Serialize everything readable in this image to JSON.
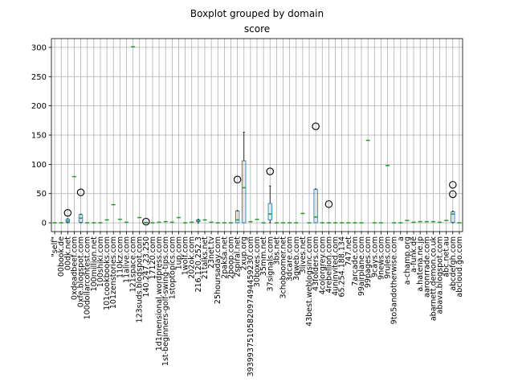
{
  "chart_data": {
    "type": "boxplot",
    "suptitle": "Boxplot grouped by domain",
    "title": "score",
    "xlabel": "",
    "ylabel": "",
    "ylim": [
      -15,
      315
    ],
    "yticks": [
      0,
      50,
      100,
      150,
      200,
      250,
      300
    ],
    "grid": true,
    "legend": "none",
    "colors": {
      "box": "#1f77b4",
      "median": "#2ca02c",
      "whisker": "#000000",
      "flier": "#000000",
      "grid": "#b0b0b0"
    },
    "categories": [
      "\"self\"",
      "00book.de",
      "00dk.net",
      "0xdeadbeef.com",
      "0xfe.blogspot.com",
      "100dollarcontest.com",
      "100million.net",
      "100shiki.com",
      "101cookbooks.com",
      "101zenstories.com",
      "110kz.com",
      "11alive.com",
      "121space.com",
      "123suds.blogspot.com",
      "140.247.23.250",
      "17120.com",
      "1d1mensional.wordpress.com",
      "1st-beginners-golf-swing-tips.com",
      "1stoptopics.com",
      "1up.com",
      "1wolf.com",
      "202ok.com",
      "216.120.252.3",
      "21talks.net",
      "23net.tv",
      "25hoursaday.com",
      "2pakša.net",
      "2poop.com",
      "2spiral.net",
      "2xup.org",
      "3939937510582097494459230.com",
      "30boxes.com",
      "35mm.net",
      "37signals.com",
      "3bs.net",
      "3choboomer.net",
      "3dcare.com",
      "3gweb.com",
      "3lives.net",
      "43best.weblogsinc.com",
      "43folders.com",
      "4colorgrey.com",
      "4rebellion.com",
      "4uninvited.com",
      "65.254.188.134",
      "747.net",
      "7arcade.com",
      "99airplane.com",
      "99pages.com",
      "9cays.com",
      "9news.com",
      "9rules.com",
      "9to5andotherwise.com",
      "a",
      "a-champ.org",
      "a-funk.de",
      "a.hatena.ne.jp",
      "aaronrrade.com",
      "abarnett.demon.co.uk",
      "abava.blogspot.com",
      "abc.net.au",
      "abcdefgh.com",
      "abcloud.go.com"
    ],
    "visible_tick_labels": [
      "\"self\"",
      "00book.de",
      "00dk.net",
      "0xdeadbeef.com",
      "0xfe.blogspot.com",
      "100dollarcontest.com",
      "100million.net",
      "100shiki.com",
      "101cookbooks.com",
      "101zenstories.com",
      "110kz.com",
      "11alive.com",
      "121space.com",
      "123suds.blogspot.com",
      "140.247.23.250",
      "17120.com",
      "1d1mensional.wordpress.com",
      "1st-beginners-golf-swing-tips.com",
      "1stoptopics.com",
      "1up.com",
      "1wolf.com",
      "202ok.com",
      "216.120.252.3",
      "21talks.net",
      "23net.tv",
      "25hoursaday.com",
      "2pakša.net",
      "2poop.com",
      "2spiral.net",
      "2xup.org",
      "3939937510582097494459230.com",
      "30boxes.com",
      "35mm.net",
      "37signals.com",
      "3bs.net",
      "3choboomer.net",
      "3dcare.com",
      "3gweb.com",
      "3lives.net",
      "43best.weblogsinc.com",
      "43folders.com",
      "4colorgrey.com",
      "4rebellion.com",
      "4uninvited.com",
      "65.254.188.134",
      "747.net",
      "7arcade.com",
      "99airplane.com",
      "99pages.com",
      "9cays.com",
      "9news.com",
      "9rules.com",
      "9to5andotherwise.com",
      "a",
      "a-champ.org",
      "a-funk.de",
      "a.hatena.ne.jp",
      "aaronrrade.com",
      "abarnett.demon.co.uk",
      "abava.blogspot.com",
      "abc.net.au",
      "abcdefgh.com",
      "abcloud.go.com"
    ],
    "boxes": [
      {
        "category": "\"self\"",
        "min": 0,
        "q1": 0,
        "median": 0,
        "q3": 0,
        "max": 0,
        "fliers": []
      },
      {
        "category": "00book.de",
        "min": 0,
        "q1": 0,
        "median": 0,
        "q3": 0,
        "max": 0,
        "fliers": []
      },
      {
        "category": "00dk.net",
        "min": 0,
        "q1": 1,
        "median": 3,
        "q3": 6,
        "max": 7,
        "fliers": [
          17
        ]
      },
      {
        "category": "0xdeadbeef.com",
        "min": 79,
        "q1": 79,
        "median": 79,
        "q3": 79,
        "max": 79,
        "fliers": []
      },
      {
        "category": "0xfe.blogspot.com",
        "min": 0,
        "q1": 1,
        "median": 8,
        "q3": 14,
        "max": 15,
        "fliers": [
          52
        ]
      },
      {
        "category": "100dollarcontest.com",
        "min": 0,
        "q1": 0,
        "median": 0,
        "q3": 0,
        "max": 0,
        "fliers": []
      },
      {
        "category": "100million.net",
        "min": 0,
        "q1": 0,
        "median": 0,
        "q3": 0,
        "max": 0,
        "fliers": []
      },
      {
        "category": "100shiki.com",
        "min": 0,
        "q1": 0,
        "median": 0,
        "q3": 0,
        "max": 0,
        "fliers": []
      },
      {
        "category": "101cookbooks.com",
        "min": 5,
        "q1": 5,
        "median": 5,
        "q3": 5,
        "max": 5,
        "fliers": []
      },
      {
        "category": "101zenstories.com",
        "min": 31,
        "q1": 31,
        "median": 31,
        "q3": 31,
        "max": 31,
        "fliers": []
      },
      {
        "category": "110kz.com",
        "min": 6,
        "q1": 6,
        "median": 6,
        "q3": 6,
        "max": 6,
        "fliers": []
      },
      {
        "category": "11alive.com",
        "min": 1,
        "q1": 1,
        "median": 1,
        "q3": 1,
        "max": 1,
        "fliers": []
      },
      {
        "category": "121space.com",
        "min": 301,
        "q1": 301,
        "median": 301,
        "q3": 301,
        "max": 301,
        "fliers": []
      },
      {
        "category": "123suds.blogspot.com",
        "min": 9,
        "q1": 9,
        "median": 9,
        "q3": 9,
        "max": 9,
        "fliers": []
      },
      {
        "category": "140.247.23.250",
        "min": 0,
        "q1": 0,
        "median": 0,
        "q3": 1,
        "max": 1,
        "fliers": [
          2
        ]
      },
      {
        "category": "17120.com",
        "min": 0,
        "q1": 0,
        "median": 0,
        "q3": 0,
        "max": 0,
        "fliers": []
      },
      {
        "category": "1d1mensional.wordpress.com",
        "min": 1,
        "q1": 1,
        "median": 1,
        "q3": 1,
        "max": 1,
        "fliers": []
      },
      {
        "category": "1st-beginners-golf-swing-tips.com",
        "min": 2,
        "q1": 2,
        "median": 2,
        "q3": 2,
        "max": 2,
        "fliers": []
      },
      {
        "category": "1stoptopics.com",
        "min": 1,
        "q1": 1,
        "median": 1,
        "q3": 1,
        "max": 1,
        "fliers": []
      },
      {
        "category": "1up.com",
        "min": 9,
        "q1": 9,
        "median": 9,
        "q3": 9,
        "max": 9,
        "fliers": []
      },
      {
        "category": "1wolf.com",
        "min": 0,
        "q1": 0,
        "median": 0,
        "q3": 0,
        "max": 0,
        "fliers": []
      },
      {
        "category": "202ok.com",
        "min": 1,
        "q1": 1,
        "median": 1,
        "q3": 1,
        "max": 1,
        "fliers": []
      },
      {
        "category": "216.120.252.3",
        "min": 0,
        "q1": 2,
        "median": 3,
        "q3": 5,
        "max": 6,
        "fliers": []
      },
      {
        "category": "21talks.net",
        "min": 5,
        "q1": 5,
        "median": 5,
        "q3": 5,
        "max": 5,
        "fliers": []
      },
      {
        "category": "23net.tv",
        "min": 1,
        "q1": 1,
        "median": 1,
        "q3": 1,
        "max": 1,
        "fliers": []
      },
      {
        "category": "25hoursaday.com",
        "min": 0,
        "q1": 0,
        "median": 0,
        "q3": 0,
        "max": 0,
        "fliers": []
      },
      {
        "category": "2pakša.net",
        "min": 0,
        "q1": 0,
        "median": 0,
        "q3": 0,
        "max": 0,
        "fliers": []
      },
      {
        "category": "2poop.com",
        "min": 0,
        "q1": 0,
        "median": 0,
        "q3": 0,
        "max": 0,
        "fliers": []
      },
      {
        "category": "2spiral.net",
        "min": 0,
        "q1": 0,
        "median": 5,
        "q3": 20,
        "max": 21,
        "fliers": [
          74
        ]
      },
      {
        "category": "2xup.org",
        "min": 0,
        "q1": 0,
        "median": 60,
        "q3": 106,
        "max": 155,
        "fliers": []
      },
      {
        "category": "3939937510582097494459230.com",
        "min": 2,
        "q1": 2,
        "median": 2,
        "q3": 2,
        "max": 2,
        "fliers": []
      },
      {
        "category": "30boxes.com",
        "min": 6,
        "q1": 6,
        "median": 6,
        "q3": 6,
        "max": 6,
        "fliers": []
      },
      {
        "category": "35mm.net",
        "min": 0,
        "q1": 0,
        "median": 0,
        "q3": 0,
        "max": 0,
        "fliers": []
      },
      {
        "category": "37signals.com",
        "min": 0,
        "q1": 5,
        "median": 15,
        "q3": 33,
        "max": 63,
        "fliers": [
          88
        ]
      },
      {
        "category": "3bs.net",
        "min": 0,
        "q1": 0,
        "median": 0,
        "q3": 0,
        "max": 0,
        "fliers": []
      },
      {
        "category": "3choboomer.net",
        "min": 0,
        "q1": 0,
        "median": 0,
        "q3": 0,
        "max": 0,
        "fliers": []
      },
      {
        "category": "3dcare.com",
        "min": 0,
        "q1": 0,
        "median": 0,
        "q3": 0,
        "max": 0,
        "fliers": []
      },
      {
        "category": "3gweb.com",
        "min": 0,
        "q1": 0,
        "median": 0,
        "q3": 0,
        "max": 0,
        "fliers": []
      },
      {
        "category": "3lives.net",
        "min": 16,
        "q1": 16,
        "median": 16,
        "q3": 16,
        "max": 16,
        "fliers": []
      },
      {
        "category": "43best.weblogsinc.com",
        "min": 0,
        "q1": 0,
        "median": 0,
        "q3": 0,
        "max": 0,
        "fliers": []
      },
      {
        "category": "43folders.com",
        "min": 0,
        "q1": 0,
        "median": 10,
        "q3": 57,
        "max": 58,
        "fliers": [
          165
        ]
      },
      {
        "category": "4colorgrey.com",
        "min": 0,
        "q1": 0,
        "median": 0,
        "q3": 0,
        "max": 0,
        "fliers": []
      },
      {
        "category": "4rebellion.com",
        "min": 0,
        "q1": 0,
        "median": 0,
        "q3": 0,
        "max": 0,
        "fliers": [
          32
        ]
      },
      {
        "category": "4uninvited.com",
        "min": 0,
        "q1": 0,
        "median": 0,
        "q3": 0,
        "max": 0,
        "fliers": []
      },
      {
        "category": "65.254.188.134",
        "min": 0,
        "q1": 0,
        "median": 0,
        "q3": 0,
        "max": 0,
        "fliers": []
      },
      {
        "category": "747.net",
        "min": 0,
        "q1": 0,
        "median": 0,
        "q3": 0,
        "max": 0,
        "fliers": []
      },
      {
        "category": "7arcade.com",
        "min": 0,
        "q1": 0,
        "median": 0,
        "q3": 0,
        "max": 0,
        "fliers": []
      },
      {
        "category": "99airplane.com",
        "min": 0,
        "q1": 0,
        "median": 0,
        "q3": 0,
        "max": 0,
        "fliers": []
      },
      {
        "category": "99pages.com",
        "min": 141,
        "q1": 141,
        "median": 141,
        "q3": 141,
        "max": 141,
        "fliers": []
      },
      {
        "category": "9cays.com",
        "min": 0,
        "q1": 0,
        "median": 0,
        "q3": 0,
        "max": 0,
        "fliers": []
      },
      {
        "category": "9news.com",
        "min": 0,
        "q1": 0,
        "median": 0,
        "q3": 0,
        "max": 0,
        "fliers": []
      },
      {
        "category": "9rules.com",
        "min": 98,
        "q1": 98,
        "median": 98,
        "q3": 98,
        "max": 98,
        "fliers": []
      },
      {
        "category": "9to5andotherwise.com",
        "min": 0,
        "q1": 0,
        "median": 0,
        "q3": 0,
        "max": 0,
        "fliers": []
      },
      {
        "category": "a",
        "min": 0,
        "q1": 0,
        "median": 0,
        "q3": 0,
        "max": 0,
        "fliers": []
      },
      {
        "category": "a-champ.org",
        "min": 4,
        "q1": 4,
        "median": 4,
        "q3": 4,
        "max": 4,
        "fliers": []
      },
      {
        "category": "a-funk.de",
        "min": 1,
        "q1": 1,
        "median": 1,
        "q3": 1,
        "max": 1,
        "fliers": []
      },
      {
        "category": "a.hatena.ne.jp",
        "min": 2,
        "q1": 2,
        "median": 2,
        "q3": 2,
        "max": 2,
        "fliers": []
      },
      {
        "category": "aaronrrade.com",
        "min": 2,
        "q1": 2,
        "median": 2,
        "q3": 2,
        "max": 2,
        "fliers": []
      },
      {
        "category": "abarnett.demon.co.uk",
        "min": 2,
        "q1": 2,
        "median": 2,
        "q3": 2,
        "max": 2,
        "fliers": []
      },
      {
        "category": "abava.blogspot.com",
        "min": 1,
        "q1": 1,
        "median": 1,
        "q3": 1,
        "max": 1,
        "fliers": []
      },
      {
        "category": "abc.net.au",
        "min": 4,
        "q1": 4,
        "median": 4,
        "q3": 4,
        "max": 4,
        "fliers": []
      },
      {
        "category": "abcdefgh.com",
        "min": 0,
        "q1": 1,
        "median": 15,
        "q3": 19,
        "max": 20,
        "fliers": [
          49,
          65
        ]
      },
      {
        "category": "abcloud.go.com",
        "min": 0,
        "q1": 0,
        "median": 0,
        "q3": 0,
        "max": 0,
        "fliers": []
      }
    ]
  }
}
